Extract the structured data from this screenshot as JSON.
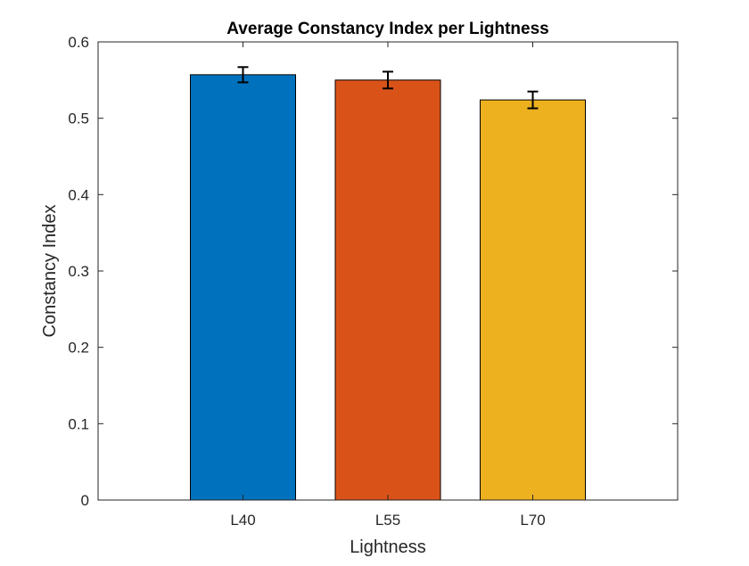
{
  "chart_data": {
    "type": "bar",
    "title": "Average Constancy Index per Lightness",
    "xlabel": "Lightness",
    "ylabel": "Constancy Index",
    "categories": [
      "L40",
      "L55",
      "L70"
    ],
    "values": [
      0.557,
      0.55,
      0.524
    ],
    "error": [
      0.01,
      0.011,
      0.011
    ],
    "colors": [
      "#0072BD",
      "#D95319",
      "#EDB120"
    ],
    "ylim": [
      0,
      0.6
    ],
    "yticks": [
      "0",
      "0.1",
      "0.2",
      "0.3",
      "0.4",
      "0.5",
      "0.6"
    ],
    "grid": false,
    "legend": "none"
  }
}
